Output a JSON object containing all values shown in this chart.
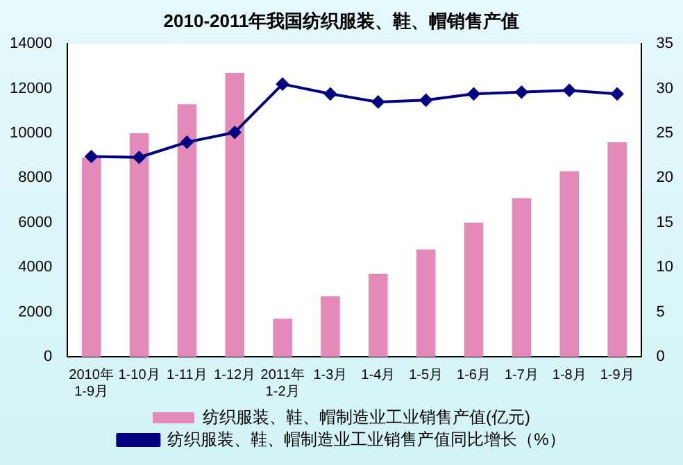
{
  "chart_data": {
    "type": "bar",
    "title": "2010-2011年我国纺织服装、鞋、帽销售产值",
    "categories": [
      "2010年1-9月",
      "1-10月",
      "1-11月",
      "1-12月",
      "2011年1-2月",
      "1-3月",
      "1-4月",
      "1-5月",
      "1-6月",
      "1-7月",
      "1-8月",
      "1-9月"
    ],
    "series": [
      {
        "name": "纺织服装、鞋、帽制造业工业销售产值(亿元)",
        "color": "#e58ab8",
        "values": [
          8900,
          10000,
          11300,
          12700,
          1700,
          2700,
          3700,
          4800,
          6000,
          7100,
          8300,
          9600
        ]
      },
      {
        "name": "纺织服装、鞋、帽制造业工业销售产值同比增长（%）",
        "type": "line",
        "axis": "y2",
        "color": "#000080",
        "marker": "diamond",
        "values": [
          22.4,
          22.3,
          24.0,
          25.1,
          30.5,
          29.4,
          28.5,
          28.7,
          29.4,
          29.6,
          29.8,
          29.4
        ]
      }
    ],
    "ylim": [
      0,
      14000
    ],
    "yticks": [
      0,
      2000,
      4000,
      6000,
      8000,
      10000,
      12000,
      14000
    ],
    "y2lim": [
      0,
      35
    ],
    "y2ticks": [
      0,
      5,
      10,
      15,
      20,
      25,
      30,
      35
    ],
    "grid": false,
    "legend": "bottom"
  }
}
